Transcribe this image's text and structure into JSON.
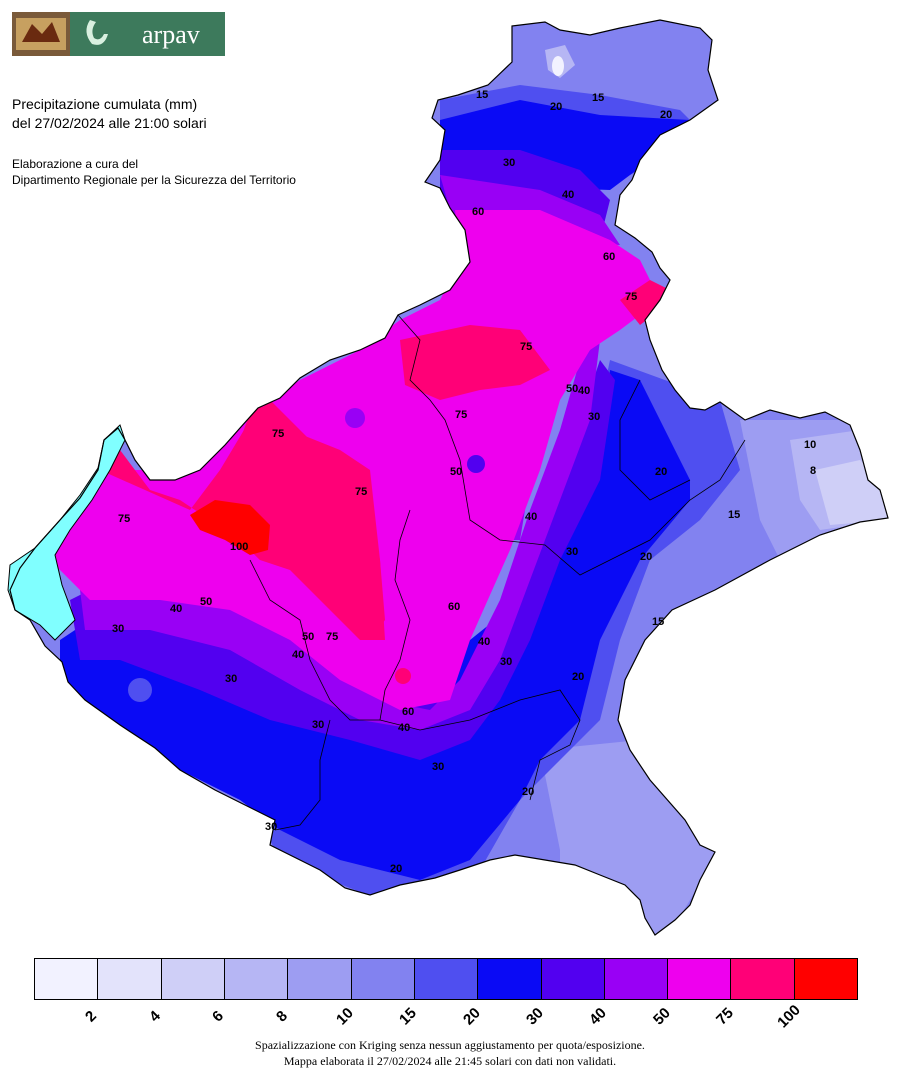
{
  "header": {
    "logo_text": "arpav",
    "title_line1": "Precipitazione cumulata (mm)",
    "title_line2": "del 27/02/2024 alle 21:00 solari",
    "credit_line1": "Elaborazione a cura del",
    "credit_line2": "Dipartimento Regionale per la Sicurezza del Territorio"
  },
  "legend": {
    "colors": [
      "#f2f2ff",
      "#e3e3fb",
      "#cfcff7",
      "#b6b6f4",
      "#9d9df2",
      "#8282f0",
      "#4f4ff0",
      "#0a0af5",
      "#5200f0",
      "#9900f5",
      "#ee00ee",
      "#ff0077",
      "#ff0000"
    ],
    "ticks": [
      "2",
      "4",
      "6",
      "8",
      "10",
      "15",
      "20",
      "30",
      "40",
      "50",
      "75",
      "100"
    ]
  },
  "contour_labels": [
    "15",
    "20",
    "30",
    "40",
    "50",
    "60",
    "75",
    "100",
    "10",
    "8"
  ],
  "footer": {
    "line1": "Spazializzazione con Kriging senza nessun aggiustamento per quota/esposizione.",
    "line2": "Mappa elaborata il 27/02/2024 alle 21:45 solari con dati non validati."
  }
}
